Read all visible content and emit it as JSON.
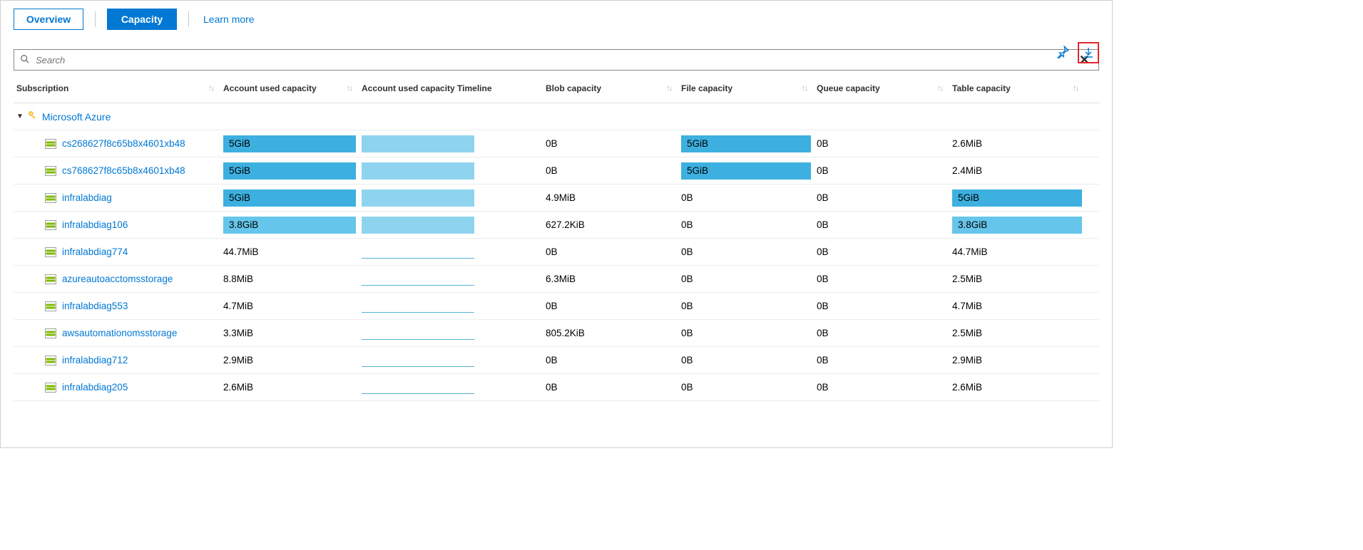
{
  "colors": {
    "link": "#0078d4",
    "bar_dark": "#3db0e0",
    "bar_med": "#66c5ea",
    "timeline": "#8fd4ee",
    "highlight_box": "#e3262c",
    "border": "#d0d0d0",
    "row_border": "#ececec",
    "sort_icon": "#b0b0b0",
    "key_icon": "#ffc83d",
    "storage_green": "#7fba00",
    "storage_gray": "#a0a0a0"
  },
  "tabs": {
    "overview": "Overview",
    "capacity": "Capacity",
    "learn_more": "Learn more"
  },
  "search": {
    "placeholder": "Search"
  },
  "headers": {
    "subscription": "Subscription",
    "account_used": "Account used capacity",
    "timeline": "Account used capacity Timeline",
    "blob": "Blob capacity",
    "file": "File capacity",
    "queue": "Queue capacity",
    "table": "Table capacity"
  },
  "group": {
    "name": "Microsoft Azure"
  },
  "bar_max_width": 186,
  "rows": [
    {
      "name": "cs268627f8c65b8x4601xb48",
      "used": {
        "label": "5GiB",
        "frac": 1.0,
        "shade": "dark"
      },
      "timeline": {
        "type": "bar",
        "shade": "light"
      },
      "blob": {
        "label": "0B",
        "frac": 0,
        "shade": "none"
      },
      "file": {
        "label": "5GiB",
        "frac": 1.0,
        "shade": "dark"
      },
      "queue": {
        "label": "0B",
        "frac": 0,
        "shade": "none"
      },
      "table": {
        "label": "2.6MiB",
        "frac": 0,
        "shade": "none"
      }
    },
    {
      "name": "cs768627f8c65b8x4601xb48",
      "used": {
        "label": "5GiB",
        "frac": 1.0,
        "shade": "dark"
      },
      "timeline": {
        "type": "bar",
        "shade": "light"
      },
      "blob": {
        "label": "0B",
        "frac": 0,
        "shade": "none"
      },
      "file": {
        "label": "5GiB",
        "frac": 1.0,
        "shade": "dark"
      },
      "queue": {
        "label": "0B",
        "frac": 0,
        "shade": "none"
      },
      "table": {
        "label": "2.4MiB",
        "frac": 0,
        "shade": "none"
      }
    },
    {
      "name": "infralabdiag",
      "used": {
        "label": "5GiB",
        "frac": 1.0,
        "shade": "dark"
      },
      "timeline": {
        "type": "bar",
        "shade": "light"
      },
      "blob": {
        "label": "4.9MiB",
        "frac": 0,
        "shade": "none"
      },
      "file": {
        "label": "0B",
        "frac": 0,
        "shade": "none"
      },
      "queue": {
        "label": "0B",
        "frac": 0,
        "shade": "none"
      },
      "table": {
        "label": "5GiB",
        "frac": 1.0,
        "shade": "dark"
      }
    },
    {
      "name": "infralabdiag106",
      "used": {
        "label": "3.8GiB",
        "frac": 1.0,
        "shade": "med"
      },
      "timeline": {
        "type": "bar",
        "shade": "light"
      },
      "blob": {
        "label": "627.2KiB",
        "frac": 0,
        "shade": "none"
      },
      "file": {
        "label": "0B",
        "frac": 0,
        "shade": "none"
      },
      "queue": {
        "label": "0B",
        "frac": 0,
        "shade": "none"
      },
      "table": {
        "label": "3.8GiB",
        "frac": 1.0,
        "shade": "med"
      }
    },
    {
      "name": "infralabdiag774",
      "used": {
        "label": "44.7MiB",
        "frac": 0,
        "shade": "none"
      },
      "timeline": {
        "type": "line"
      },
      "blob": {
        "label": "0B",
        "frac": 0,
        "shade": "none"
      },
      "file": {
        "label": "0B",
        "frac": 0,
        "shade": "none"
      },
      "queue": {
        "label": "0B",
        "frac": 0,
        "shade": "none"
      },
      "table": {
        "label": "44.7MiB",
        "frac": 0,
        "shade": "none"
      }
    },
    {
      "name": "azureautoacctomsstorage",
      "used": {
        "label": "8.8MiB",
        "frac": 0,
        "shade": "none"
      },
      "timeline": {
        "type": "line"
      },
      "blob": {
        "label": "6.3MiB",
        "frac": 0,
        "shade": "none"
      },
      "file": {
        "label": "0B",
        "frac": 0,
        "shade": "none"
      },
      "queue": {
        "label": "0B",
        "frac": 0,
        "shade": "none"
      },
      "table": {
        "label": "2.5MiB",
        "frac": 0,
        "shade": "none"
      }
    },
    {
      "name": "infralabdiag553",
      "used": {
        "label": "4.7MiB",
        "frac": 0,
        "shade": "none"
      },
      "timeline": {
        "type": "line"
      },
      "blob": {
        "label": "0B",
        "frac": 0,
        "shade": "none"
      },
      "file": {
        "label": "0B",
        "frac": 0,
        "shade": "none"
      },
      "queue": {
        "label": "0B",
        "frac": 0,
        "shade": "none"
      },
      "table": {
        "label": "4.7MiB",
        "frac": 0,
        "shade": "none"
      }
    },
    {
      "name": "awsautomationomsstorage",
      "used": {
        "label": "3.3MiB",
        "frac": 0,
        "shade": "none"
      },
      "timeline": {
        "type": "line"
      },
      "blob": {
        "label": "805.2KiB",
        "frac": 0,
        "shade": "none"
      },
      "file": {
        "label": "0B",
        "frac": 0,
        "shade": "none"
      },
      "queue": {
        "label": "0B",
        "frac": 0,
        "shade": "none"
      },
      "table": {
        "label": "2.5MiB",
        "frac": 0,
        "shade": "none"
      }
    },
    {
      "name": "infralabdiag712",
      "used": {
        "label": "2.9MiB",
        "frac": 0,
        "shade": "none"
      },
      "timeline": {
        "type": "line"
      },
      "blob": {
        "label": "0B",
        "frac": 0,
        "shade": "none"
      },
      "file": {
        "label": "0B",
        "frac": 0,
        "shade": "none"
      },
      "queue": {
        "label": "0B",
        "frac": 0,
        "shade": "none"
      },
      "table": {
        "label": "2.9MiB",
        "frac": 0,
        "shade": "none"
      }
    },
    {
      "name": "infralabdiag205",
      "used": {
        "label": "2.6MiB",
        "frac": 0,
        "shade": "none"
      },
      "timeline": {
        "type": "line"
      },
      "blob": {
        "label": "0B",
        "frac": 0,
        "shade": "none"
      },
      "file": {
        "label": "0B",
        "frac": 0,
        "shade": "none"
      },
      "queue": {
        "label": "0B",
        "frac": 0,
        "shade": "none"
      },
      "table": {
        "label": "2.6MiB",
        "frac": 0,
        "shade": "none"
      }
    }
  ]
}
